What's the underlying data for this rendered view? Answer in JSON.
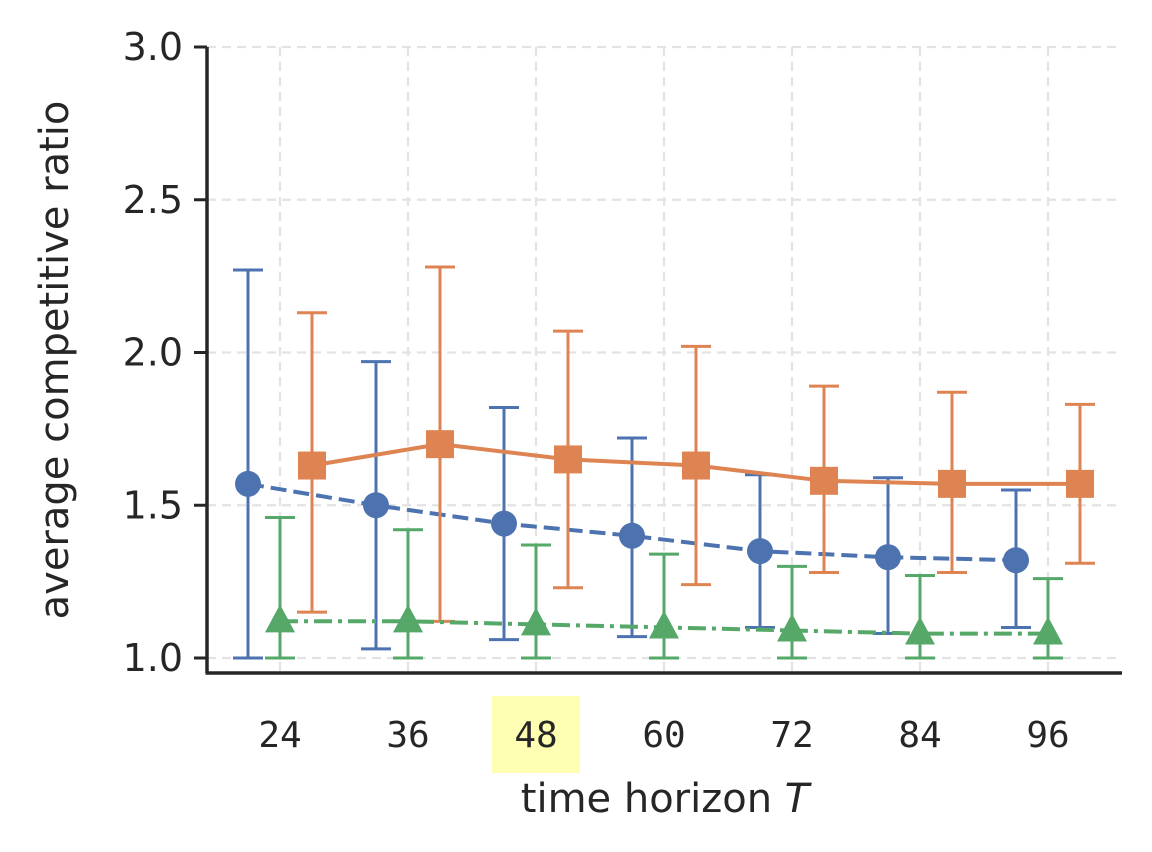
{
  "chart_data": {
    "type": "line",
    "title": "",
    "xlabel": "time horizon",
    "xlabel_var": "T",
    "ylabel": "average competitive ratio",
    "categories": [
      "24",
      "36",
      "48",
      "60",
      "72",
      "84",
      "96"
    ],
    "highlighted_category": "48",
    "ylim": [
      1.0,
      3.0
    ],
    "yticks": [
      "1.0",
      "1.5",
      "2.0",
      "2.5",
      "3.0"
    ],
    "grid": true,
    "legend": null,
    "series": [
      {
        "name": "series-blue",
        "color": "#4c72b0",
        "marker": "circle",
        "line_style": "dashed",
        "offset": -0.25,
        "values": [
          1.57,
          1.5,
          1.44,
          1.4,
          1.35,
          1.33,
          1.32
        ],
        "err_low": [
          1.0,
          1.03,
          1.06,
          1.07,
          1.1,
          1.08,
          1.1
        ],
        "err_high": [
          2.27,
          1.97,
          1.82,
          1.72,
          1.6,
          1.59,
          1.55
        ]
      },
      {
        "name": "series-orange",
        "color": "#dd8452",
        "marker": "square",
        "line_style": "solid",
        "offset": 0.25,
        "values": [
          1.63,
          1.7,
          1.65,
          1.63,
          1.58,
          1.57,
          1.57
        ],
        "err_low": [
          1.15,
          1.12,
          1.23,
          1.24,
          1.28,
          1.28,
          1.31
        ],
        "err_high": [
          2.13,
          2.28,
          2.07,
          2.02,
          1.89,
          1.87,
          1.83
        ]
      },
      {
        "name": "series-green",
        "color": "#55a868",
        "marker": "triangle",
        "line_style": "dashdot",
        "offset": 0.0,
        "values": [
          1.12,
          1.12,
          1.11,
          1.1,
          1.09,
          1.08,
          1.08
        ],
        "err_low": [
          1.0,
          1.0,
          1.0,
          1.0,
          1.0,
          1.0,
          1.0
        ],
        "err_high": [
          1.46,
          1.42,
          1.37,
          1.34,
          1.3,
          1.27,
          1.26
        ]
      }
    ]
  }
}
